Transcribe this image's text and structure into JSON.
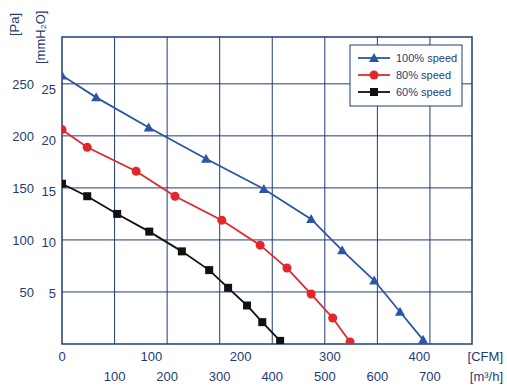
{
  "chart_data": {
    "type": "line",
    "y_label": "[Pa]",
    "y2_label": "[mmH₂O]",
    "x_label": "[m³/h]",
    "x2_label": "[CFM]",
    "xlim": [
      0,
      780
    ],
    "xticks": [
      100,
      200,
      300,
      400,
      500,
      600,
      700
    ],
    "x2lim": [
      0,
      459
    ],
    "x2ticks": [
      0,
      100,
      200,
      300,
      400
    ],
    "ylim": [
      0,
      295
    ],
    "yticks": [
      50,
      100,
      150,
      200,
      250
    ],
    "y2lim": [
      0,
      30.08
    ],
    "y2ticks": [
      5,
      10,
      15,
      20,
      25
    ],
    "grid": true,
    "legend": "top-right",
    "series": [
      {
        "name": "100% speed",
        "color": "#2b56a6",
        "marker": "triangle",
        "x": [
          0,
          65,
          165,
          274,
          384,
          474,
          533,
          594,
          643,
          687
        ],
        "values": [
          258,
          237,
          208,
          178,
          149,
          120,
          90,
          61,
          31,
          4
        ]
      },
      {
        "name": "80% speed",
        "color": "#e3262b",
        "marker": "circle",
        "x": [
          0,
          48,
          141,
          215,
          304,
          377,
          428,
          474,
          515,
          548
        ],
        "values": [
          206,
          189,
          166,
          142,
          119,
          95,
          73,
          48,
          25,
          2
        ]
      },
      {
        "name": "60% speed",
        "color": "#111111",
        "marker": "square",
        "x": [
          0,
          48,
          105,
          166,
          228,
          280,
          316,
          352,
          381,
          415
        ],
        "values": [
          154,
          142,
          125,
          108,
          89,
          71,
          54,
          37,
          21,
          3
        ]
      }
    ]
  }
}
